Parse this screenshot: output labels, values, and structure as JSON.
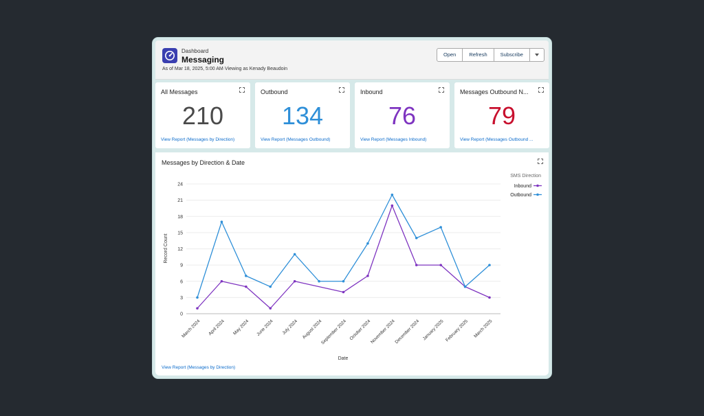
{
  "header": {
    "small_label": "Dashboard",
    "title": "Messaging",
    "subtitle": "As of Mar 18, 2025, 5:00 AM·Viewing as Kenady Beaudoin",
    "buttons": {
      "open": "Open",
      "refresh": "Refresh",
      "subscribe": "Subscribe"
    },
    "logo_icon": "gauge-icon"
  },
  "cards": [
    {
      "title": "All Messages",
      "value": "210",
      "color": "#4a4a4a",
      "link": "View Report (Messages by Direction)"
    },
    {
      "title": "Outbound",
      "value": "134",
      "color": "#2e8fd8",
      "link": "View Report (Messages Outbound)"
    },
    {
      "title": "Inbound",
      "value": "76",
      "color": "#7e34c0",
      "link": "View Report (Messages Inbound)"
    },
    {
      "title": "Messages Outbound N...",
      "value": "79",
      "color": "#c8102e",
      "link": "View Report (Messages Outbound ..."
    }
  ],
  "chart": {
    "title": "Messages by Direction & Date",
    "link": "View Report (Messages by Direction)"
  },
  "chart_data": {
    "type": "line",
    "title": "Messages by Direction & Date",
    "xlabel": "Date",
    "ylabel": "Record Count",
    "ylim": [
      0,
      24
    ],
    "yticks": [
      0,
      3,
      6,
      9,
      12,
      15,
      18,
      21,
      24
    ],
    "grid": true,
    "legend_title": "SMS Direction",
    "legend_position": "top-right",
    "categories": [
      "March 2024",
      "April 2024",
      "May 2024",
      "June 2024",
      "July 2024",
      "August 2024",
      "September 2024",
      "October 2024",
      "November 2024",
      "December 2024",
      "January 2025",
      "February 2025",
      "March 2025"
    ],
    "series": [
      {
        "name": "Inbound",
        "color": "#7e34c0",
        "values": [
          1,
          6,
          5,
          1,
          6,
          null,
          4,
          7,
          20,
          9,
          9,
          5,
          3
        ]
      },
      {
        "name": "Outbound",
        "color": "#2e8fd8",
        "values": [
          3,
          17,
          7,
          5,
          11,
          6,
          6,
          13,
          22,
          14,
          16,
          5,
          9
        ]
      }
    ]
  }
}
